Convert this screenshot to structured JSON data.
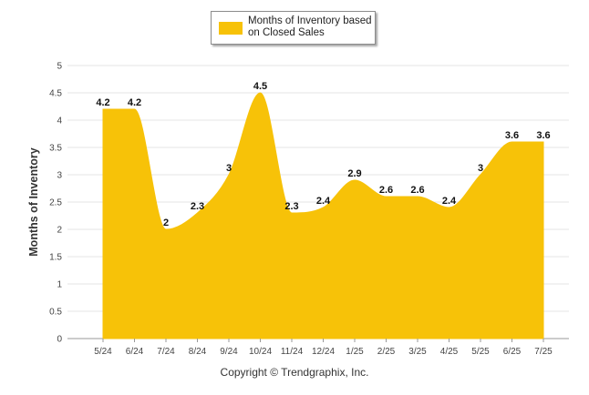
{
  "chart_data": {
    "type": "area",
    "legend": {
      "label": "Months of Inventory based on Closed Sales",
      "placement": "top-center"
    },
    "ylabel": "Months of Inventory",
    "xlabel": "",
    "categories": [
      "5/24",
      "6/24",
      "7/24",
      "8/24",
      "9/24",
      "10/24",
      "11/24",
      "12/24",
      "1/25",
      "2/25",
      "3/25",
      "4/25",
      "5/25",
      "6/25",
      "7/25"
    ],
    "series": [
      {
        "name": "Months of Inventory based on Closed Sales",
        "values": [
          4.2,
          4.2,
          2,
          2.3,
          3,
          4.5,
          2.3,
          2.4,
          2.9,
          2.6,
          2.6,
          2.4,
          3,
          3.6,
          3.6
        ]
      }
    ],
    "ylim": [
      0,
      5
    ],
    "yticks": [
      "0",
      "0.5",
      "1",
      "1.5",
      "2",
      "2.5",
      "3",
      "3.5",
      "4",
      "4.5",
      "5"
    ],
    "data_labels": [
      "4.2",
      "4.2",
      "2",
      "2.3",
      "3",
      "4.5",
      "2.3",
      "2.4",
      "2.9",
      "2.6",
      "2.6",
      "2.4",
      "3",
      "3.6",
      "3.6"
    ],
    "grid": true,
    "color": "#F7C208"
  },
  "footer": {
    "copyright": "Copyright © Trendgraphix, Inc."
  }
}
